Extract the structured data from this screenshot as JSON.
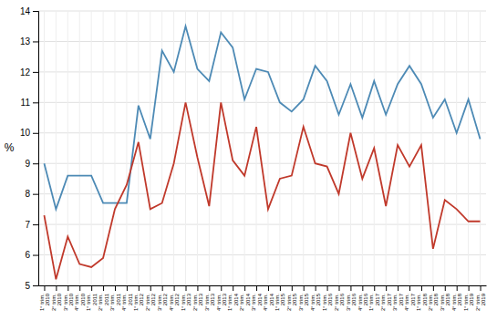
{
  "chart_data": {
    "type": "line",
    "categories": [
      "1° trim.\n2010",
      "2° trim.\n2010",
      "3° trim.\n2010",
      "4° trim.\n2010",
      "1° trim.\n2011",
      "2° trim.\n2011",
      "3° trim.\n2011",
      "4° trim.\n2011",
      "1° trim.\n2012",
      "2° trim.\n2012",
      "3° trim.\n2012",
      "4° trim.\n2012",
      "1° trim.\n2013",
      "2° trim.\n2013",
      "3° trim.\n2013",
      "4° trim.\n2013",
      "1° trim.\n2014",
      "2° trim.\n2014",
      "3° trim.\n2014",
      "4° trim.\n2014",
      "1° trim.\n2015",
      "2° trim.\n2015",
      "3° trim.\n2015",
      "4° trim.\n2015",
      "1° trim.\n2016",
      "2° trim.\n2016",
      "3° trim.\n2016",
      "4° trim.\n2016",
      "1° trim.\n2017",
      "2° trim.\n2017",
      "3° trim.\n2017",
      "4° trim.\n2017",
      "1° trim.\n2018",
      "2° trim.\n2018",
      "3° trim.\n2018",
      "4° trim.\n2018",
      "1° trim.\n2019",
      "2° trim.\n2019"
    ],
    "series": [
      {
        "color": "#4d8ab5",
        "values": [
          9.0,
          7.5,
          8.6,
          8.6,
          8.6,
          7.7,
          7.7,
          7.7,
          10.9,
          9.8,
          12.7,
          12.0,
          13.5,
          12.1,
          11.7,
          13.3,
          12.8,
          11.1,
          12.1,
          12.0,
          11.0,
          10.7,
          11.1,
          12.2,
          11.7,
          10.6,
          11.6,
          10.5,
          11.7,
          10.6,
          11.6,
          12.2,
          11.6,
          10.5,
          11.1,
          10.0,
          11.1,
          9.8
        ]
      },
      {
        "color": "#c0392b",
        "values": [
          7.3,
          5.2,
          6.6,
          5.7,
          5.6,
          5.9,
          7.5,
          8.3,
          9.7,
          7.5,
          7.7,
          9.0,
          11.0,
          9.2,
          7.6,
          11.0,
          9.1,
          8.6,
          10.2,
          7.5,
          8.5,
          8.6,
          10.2,
          9.0,
          8.9,
          8.0,
          10.0,
          8.5,
          9.5,
          7.6,
          9.6,
          8.9,
          9.6,
          6.2,
          7.8,
          7.5,
          7.1,
          7.1
        ]
      }
    ],
    "y_label": "%",
    "ylim": [
      5,
      14
    ],
    "yticks": [
      5,
      6,
      7,
      8,
      9,
      10,
      11,
      12,
      13,
      14
    ],
    "grid": true
  }
}
